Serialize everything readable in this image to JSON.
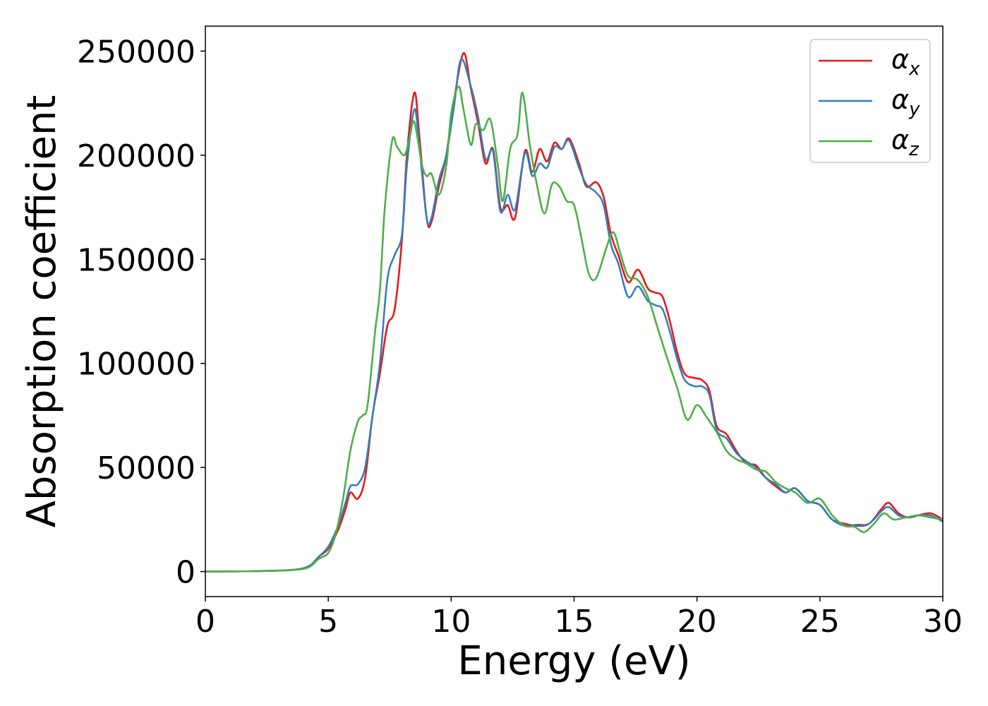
{
  "chart_data": {
    "type": "line",
    "xlabel": "Energy (eV)",
    "ylabel": "Absorption coefficient",
    "xlim": [
      0,
      30
    ],
    "ylim": [
      -12000,
      262000
    ],
    "xticks": [
      0,
      5,
      10,
      15,
      20,
      25,
      30
    ],
    "yticks": [
      0,
      50000,
      100000,
      150000,
      200000,
      250000
    ],
    "grid": false,
    "legend_position": "top-right",
    "series": [
      {
        "name": "α",
        "subscript": "x",
        "color": "#e41a1c",
        "points": [
          [
            0,
            0
          ],
          [
            2,
            200
          ],
          [
            3.5,
            800
          ],
          [
            4.2,
            2500
          ],
          [
            4.6,
            7000
          ],
          [
            5.0,
            11000
          ],
          [
            5.4,
            20000
          ],
          [
            5.7,
            30000
          ],
          [
            5.9,
            38000
          ],
          [
            6.2,
            35000
          ],
          [
            6.5,
            45000
          ],
          [
            6.8,
            75000
          ],
          [
            7.1,
            95000
          ],
          [
            7.4,
            118000
          ],
          [
            7.7,
            126000
          ],
          [
            8.0,
            160000
          ],
          [
            8.2,
            200000
          ],
          [
            8.5,
            230000
          ],
          [
            8.7,
            210000
          ],
          [
            9.0,
            170000
          ],
          [
            9.2,
            168000
          ],
          [
            9.5,
            185000
          ],
          [
            9.8,
            200000
          ],
          [
            10.1,
            225000
          ],
          [
            10.5,
            249000
          ],
          [
            10.8,
            232000
          ],
          [
            11.1,
            215000
          ],
          [
            11.4,
            196000
          ],
          [
            11.7,
            203000
          ],
          [
            12.0,
            175000
          ],
          [
            12.3,
            176000
          ],
          [
            12.6,
            170000
          ],
          [
            13.0,
            202000
          ],
          [
            13.3,
            192000
          ],
          [
            13.6,
            203000
          ],
          [
            13.9,
            197000
          ],
          [
            14.2,
            206000
          ],
          [
            14.5,
            203000
          ],
          [
            14.8,
            208000
          ],
          [
            15.2,
            196000
          ],
          [
            15.5,
            185000
          ],
          [
            15.9,
            187000
          ],
          [
            16.2,
            180000
          ],
          [
            16.5,
            162000
          ],
          [
            16.8,
            152000
          ],
          [
            17.2,
            139000
          ],
          [
            17.6,
            145000
          ],
          [
            18.0,
            136000
          ],
          [
            18.3,
            134000
          ],
          [
            18.6,
            132000
          ],
          [
            18.9,
            120000
          ],
          [
            19.2,
            105000
          ],
          [
            19.5,
            95000
          ],
          [
            19.9,
            93000
          ],
          [
            20.2,
            92000
          ],
          [
            20.5,
            87000
          ],
          [
            20.8,
            70000
          ],
          [
            21.2,
            66000
          ],
          [
            21.6,
            58000
          ],
          [
            22.0,
            52000
          ],
          [
            22.4,
            51000
          ],
          [
            22.8,
            45000
          ],
          [
            23.2,
            41000
          ],
          [
            23.6,
            38000
          ],
          [
            24.0,
            40000
          ],
          [
            24.5,
            34000
          ],
          [
            25.0,
            32000
          ],
          [
            25.5,
            25000
          ],
          [
            26.0,
            23000
          ],
          [
            26.5,
            22000
          ],
          [
            27.0,
            23000
          ],
          [
            27.5,
            30000
          ],
          [
            27.8,
            33000
          ],
          [
            28.2,
            28000
          ],
          [
            28.6,
            26000
          ],
          [
            29.0,
            27000
          ],
          [
            29.5,
            28000
          ],
          [
            30,
            25000
          ]
        ]
      },
      {
        "name": "α",
        "subscript": "y",
        "color": "#377eb8",
        "points": [
          [
            0,
            0
          ],
          [
            2,
            200
          ],
          [
            3.5,
            800
          ],
          [
            4.2,
            2500
          ],
          [
            4.6,
            7000
          ],
          [
            5.0,
            12000
          ],
          [
            5.4,
            22000
          ],
          [
            5.7,
            33000
          ],
          [
            5.9,
            41000
          ],
          [
            6.2,
            42000
          ],
          [
            6.5,
            50000
          ],
          [
            6.8,
            75000
          ],
          [
            7.1,
            100000
          ],
          [
            7.4,
            140000
          ],
          [
            7.7,
            152000
          ],
          [
            8.0,
            162000
          ],
          [
            8.2,
            195000
          ],
          [
            8.5,
            222000
          ],
          [
            8.7,
            205000
          ],
          [
            9.0,
            170000
          ],
          [
            9.2,
            170000
          ],
          [
            9.5,
            188000
          ],
          [
            9.8,
            200000
          ],
          [
            10.1,
            222000
          ],
          [
            10.4,
            246000
          ],
          [
            10.8,
            233000
          ],
          [
            11.1,
            218000
          ],
          [
            11.4,
            198000
          ],
          [
            11.7,
            202000
          ],
          [
            12.0,
            173000
          ],
          [
            12.3,
            181000
          ],
          [
            12.6,
            174000
          ],
          [
            13.0,
            201000
          ],
          [
            13.3,
            190000
          ],
          [
            13.6,
            196000
          ],
          [
            13.9,
            194000
          ],
          [
            14.2,
            204000
          ],
          [
            14.5,
            203000
          ],
          [
            14.8,
            207000
          ],
          [
            15.2,
            194000
          ],
          [
            15.5,
            186000
          ],
          [
            15.9,
            182000
          ],
          [
            16.2,
            176000
          ],
          [
            16.5,
            157000
          ],
          [
            16.8,
            148000
          ],
          [
            17.2,
            132000
          ],
          [
            17.6,
            137000
          ],
          [
            18.0,
            130000
          ],
          [
            18.3,
            128000
          ],
          [
            18.6,
            126000
          ],
          [
            18.9,
            115000
          ],
          [
            19.2,
            102000
          ],
          [
            19.5,
            92000
          ],
          [
            19.9,
            89000
          ],
          [
            20.2,
            89000
          ],
          [
            20.5,
            85000
          ],
          [
            20.8,
            68000
          ],
          [
            21.2,
            64000
          ],
          [
            21.6,
            57000
          ],
          [
            22.0,
            53000
          ],
          [
            22.4,
            50000
          ],
          [
            22.8,
            45000
          ],
          [
            23.2,
            42000
          ],
          [
            23.6,
            38000
          ],
          [
            24.0,
            40000
          ],
          [
            24.5,
            34000
          ],
          [
            25.0,
            32000
          ],
          [
            25.5,
            25000
          ],
          [
            26.0,
            22000
          ],
          [
            26.5,
            22500
          ],
          [
            27.0,
            23000
          ],
          [
            27.5,
            29000
          ],
          [
            27.8,
            31000
          ],
          [
            28.2,
            27000
          ],
          [
            28.6,
            26000
          ],
          [
            29.0,
            27000
          ],
          [
            29.5,
            27000
          ],
          [
            30,
            24000
          ]
        ]
      },
      {
        "name": "α",
        "subscript": "z",
        "color": "#4daf4a",
        "points": [
          [
            0,
            0
          ],
          [
            2,
            200
          ],
          [
            3.5,
            700
          ],
          [
            4.2,
            2000
          ],
          [
            4.6,
            6000
          ],
          [
            5.0,
            9000
          ],
          [
            5.3,
            18000
          ],
          [
            5.6,
            35000
          ],
          [
            5.9,
            58000
          ],
          [
            6.2,
            72000
          ],
          [
            6.4,
            75000
          ],
          [
            6.6,
            80000
          ],
          [
            6.9,
            115000
          ],
          [
            7.1,
            135000
          ],
          [
            7.3,
            175000
          ],
          [
            7.6,
            207000
          ],
          [
            7.8,
            204000
          ],
          [
            8.1,
            200000
          ],
          [
            8.3,
            208000
          ],
          [
            8.5,
            216000
          ],
          [
            8.8,
            196000
          ],
          [
            9.0,
            190000
          ],
          [
            9.2,
            191000
          ],
          [
            9.5,
            181000
          ],
          [
            9.8,
            195000
          ],
          [
            10.0,
            220000
          ],
          [
            10.3,
            233000
          ],
          [
            10.5,
            222000
          ],
          [
            10.8,
            205000
          ],
          [
            11.0,
            215000
          ],
          [
            11.3,
            212000
          ],
          [
            11.6,
            217000
          ],
          [
            11.9,
            195000
          ],
          [
            12.1,
            178000
          ],
          [
            12.4,
            203000
          ],
          [
            12.7,
            210000
          ],
          [
            12.9,
            230000
          ],
          [
            13.2,
            205000
          ],
          [
            13.5,
            185000
          ],
          [
            13.8,
            172000
          ],
          [
            14.1,
            186000
          ],
          [
            14.4,
            185000
          ],
          [
            14.7,
            178000
          ],
          [
            15.0,
            176000
          ],
          [
            15.3,
            160000
          ],
          [
            15.6,
            143000
          ],
          [
            15.9,
            141000
          ],
          [
            16.3,
            155000
          ],
          [
            16.6,
            163000
          ],
          [
            16.9,
            152000
          ],
          [
            17.2,
            142000
          ],
          [
            17.6,
            140000
          ],
          [
            18.0,
            132000
          ],
          [
            18.4,
            117000
          ],
          [
            18.8,
            102000
          ],
          [
            19.2,
            88000
          ],
          [
            19.6,
            73000
          ],
          [
            20.0,
            80000
          ],
          [
            20.4,
            74000
          ],
          [
            20.8,
            67000
          ],
          [
            21.2,
            58000
          ],
          [
            21.6,
            54000
          ],
          [
            22.0,
            52000
          ],
          [
            22.4,
            49000
          ],
          [
            22.8,
            48000
          ],
          [
            23.2,
            43000
          ],
          [
            23.6,
            40000
          ],
          [
            24.0,
            38000
          ],
          [
            24.5,
            33000
          ],
          [
            25.0,
            35000
          ],
          [
            25.5,
            27000
          ],
          [
            26.0,
            22000
          ],
          [
            26.4,
            21500
          ],
          [
            26.8,
            19000
          ],
          [
            27.2,
            23000
          ],
          [
            27.6,
            28000
          ],
          [
            28.0,
            25000
          ],
          [
            28.5,
            26000
          ],
          [
            29.0,
            27000
          ],
          [
            29.5,
            26000
          ],
          [
            30,
            25000
          ]
        ]
      }
    ]
  }
}
